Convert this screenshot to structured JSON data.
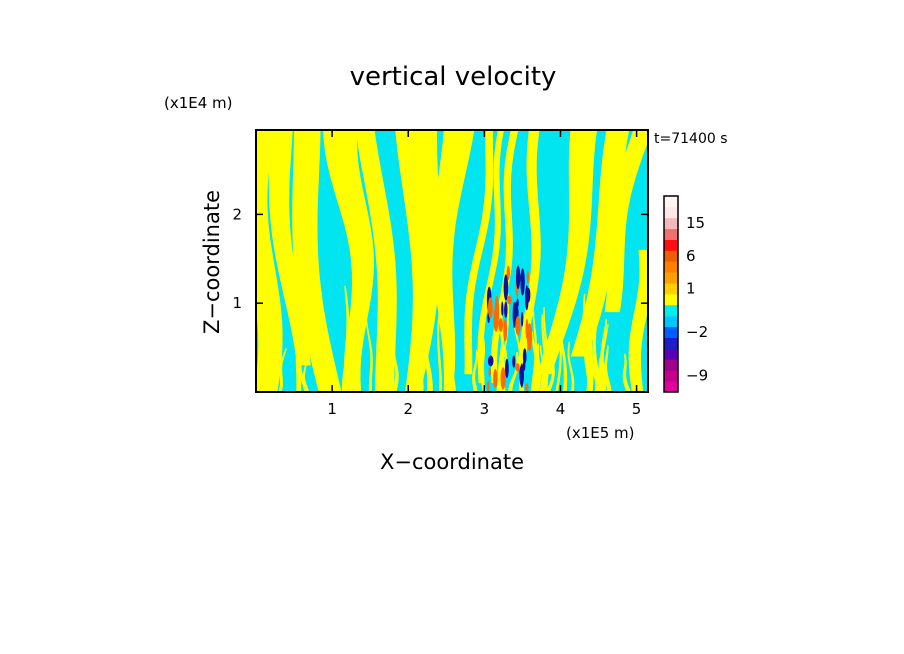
{
  "chart_data": {
    "type": "heatmap",
    "title": "vertical velocity",
    "time_label": "t=71400 s",
    "xlabel": "X−coordinate",
    "ylabel": "Z−coordinate",
    "x_unit": "(x1E5 m)",
    "y_unit": "(x1E4 m)",
    "xlim": [
      0,
      5.15
    ],
    "ylim": [
      0,
      2.95
    ],
    "x_ticks": [
      {
        "value": 1,
        "label": "1"
      },
      {
        "value": 2,
        "label": "2"
      },
      {
        "value": 3,
        "label": "3"
      },
      {
        "value": 4,
        "label": "4"
      },
      {
        "value": 5,
        "label": "5"
      }
    ],
    "y_ticks": [
      {
        "value": 1,
        "label": "1"
      },
      {
        "value": 2,
        "label": "2"
      }
    ],
    "field_colors": {
      "positive": "#ffff00",
      "negative": "#00e5f0",
      "strong_positive": "#ff6a00",
      "strong_negative": "#1010a0"
    },
    "colorbar": {
      "levels": [
        {
          "value": -12,
          "color": "#e0009a"
        },
        {
          "value": -9,
          "color": "#c8008e"
        },
        {
          "value": -6,
          "color": "#a0008c"
        },
        {
          "value": -4,
          "color": "#5a00b4"
        },
        {
          "value": -3,
          "color": "#1e1ec8"
        },
        {
          "value": -2,
          "color": "#0060ff"
        },
        {
          "value": -1,
          "color": "#00c8ff"
        },
        {
          "value": 0,
          "color": "#00eeee"
        },
        {
          "value": 0.5,
          "color": "#ffff00"
        },
        {
          "value": 1,
          "color": "#ffd000"
        },
        {
          "value": 2,
          "color": "#ffa000"
        },
        {
          "value": 4,
          "color": "#ff8000"
        },
        {
          "value": 6,
          "color": "#f06000"
        },
        {
          "value": 9,
          "color": "#ff1010"
        },
        {
          "value": 12,
          "color": "#f07070"
        },
        {
          "value": 15,
          "color": "#f4b8b8"
        },
        {
          "value": 18,
          "color": "#fce8e8"
        },
        {
          "value": 22,
          "color": "#fff6f2"
        }
      ],
      "tick_labels": [
        {
          "value": -9,
          "label": "−9"
        },
        {
          "value": -2,
          "label": "−2"
        },
        {
          "value": 1,
          "label": "1"
        },
        {
          "value": 6,
          "label": "6"
        },
        {
          "value": 15,
          "label": "15"
        }
      ]
    }
  }
}
